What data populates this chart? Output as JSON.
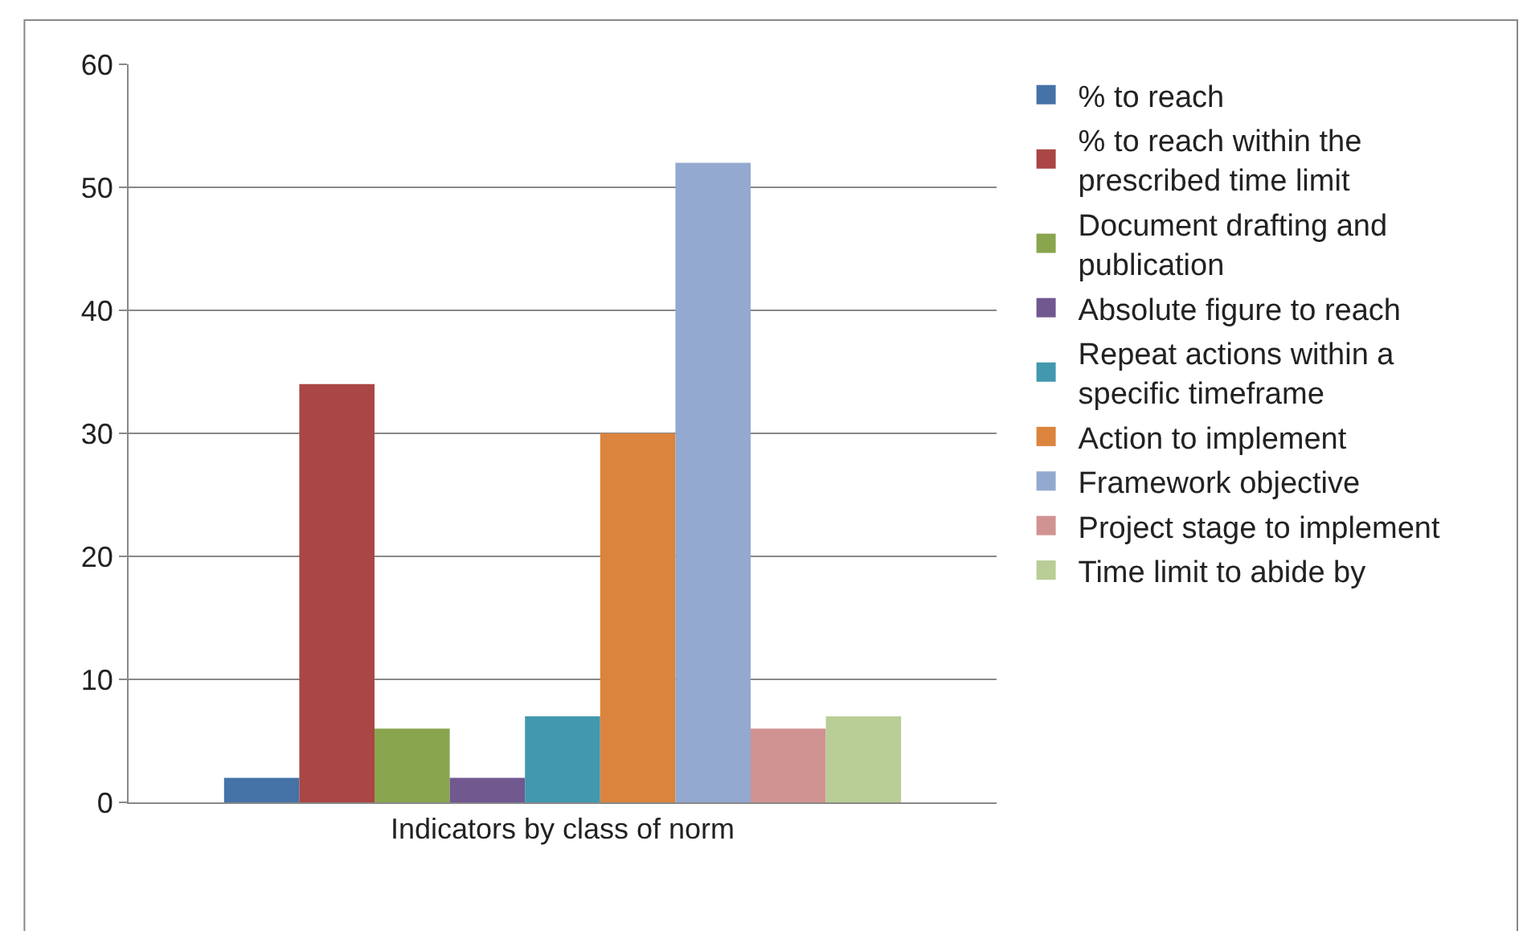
{
  "chart_data": {
    "type": "bar",
    "categories": [
      "Indicators by class of norm"
    ],
    "series": [
      {
        "name": "% to reach",
        "color": "#4572a7",
        "values": [
          2
        ]
      },
      {
        "name": "% to reach within the prescribed time limit",
        "color": "#aa4643",
        "values": [
          34
        ]
      },
      {
        "name": "Document drafting and publication",
        "color": "#89a54e",
        "values": [
          6
        ]
      },
      {
        "name": "Absolute figure to reach",
        "color": "#71588f",
        "values": [
          2
        ]
      },
      {
        "name": "Repeat actions within a specific timeframe",
        "color": "#4198af",
        "values": [
          7
        ]
      },
      {
        "name": "Action to implement",
        "color": "#db843d",
        "values": [
          30
        ]
      },
      {
        "name": "Framework objective",
        "color": "#93a9cf",
        "values": [
          52
        ]
      },
      {
        "name": "Project stage to implement",
        "color": "#d19392",
        "values": [
          6
        ]
      },
      {
        "name": "Time limit to abide by",
        "color": "#b9cd96",
        "values": [
          7
        ]
      }
    ],
    "ylim": [
      0,
      60
    ],
    "yticks": [
      0,
      10,
      20,
      30,
      40,
      50,
      60
    ],
    "grid": "y",
    "legend": "right"
  }
}
